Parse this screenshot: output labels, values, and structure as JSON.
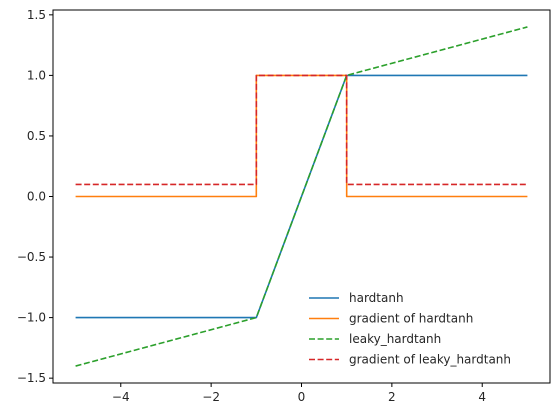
{
  "chart_data": {
    "type": "line",
    "title": "",
    "xlabel": "",
    "ylabel": "",
    "xlim": [
      -5.5,
      5.5
    ],
    "ylim": [
      -1.54,
      1.54
    ],
    "xticks": [
      -4,
      -2,
      0,
      2,
      4
    ],
    "xtick_labels": [
      "−4",
      "−2",
      "0",
      "2",
      "4"
    ],
    "yticks": [
      -1.5,
      -1.0,
      -0.5,
      0.0,
      0.5,
      1.0,
      1.5
    ],
    "ytick_labels": [
      "−1.5",
      "−1.0",
      "−0.5",
      "0.0",
      "0.5",
      "1.0",
      "1.5"
    ],
    "grid": false,
    "legend_position": "lower-right",
    "series": [
      {
        "name": "hardtanh",
        "color": "#1f77b4",
        "style": "solid",
        "x": [
          -5,
          -1,
          1,
          5
        ],
        "y": [
          -1,
          -1,
          1,
          1
        ]
      },
      {
        "name": "gradient of hardtanh",
        "color": "#ff7f0e",
        "style": "solid",
        "x": [
          -5,
          -1,
          -1,
          1,
          1,
          5
        ],
        "y": [
          0,
          0,
          1,
          1,
          0,
          0
        ]
      },
      {
        "name": "leaky_hardtanh",
        "color": "#2ca02c",
        "style": "dashed",
        "x": [
          -5,
          -1,
          1,
          5
        ],
        "y": [
          -1.4,
          -1,
          1,
          1.4
        ]
      },
      {
        "name": "gradient of leaky_hardtanh",
        "color": "#d62728",
        "style": "dashed",
        "x": [
          -5,
          -1,
          -1,
          1,
          1,
          5
        ],
        "y": [
          0.1,
          0.1,
          1,
          1,
          0.1,
          0.1
        ]
      }
    ]
  }
}
